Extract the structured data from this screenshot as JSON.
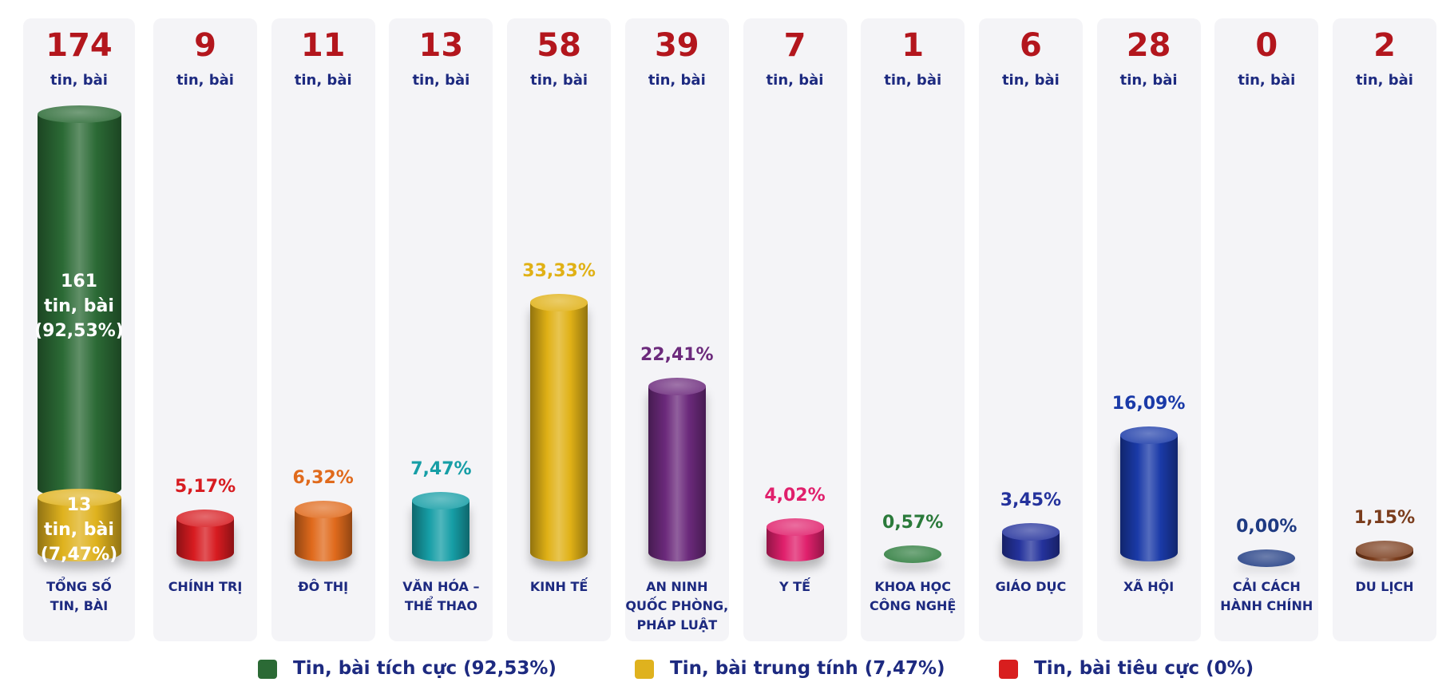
{
  "chart_data": {
    "type": "cylinder-bar",
    "unit": "tin, bài",
    "total": {
      "label_lines": [
        "TỔNG SỐ",
        "TIN, BÀI"
      ],
      "count": 174
    },
    "series": [
      {
        "name": "Tin, bài tích cực (92,53%)",
        "color": "#2b6a35",
        "count": 161,
        "percent": 92.53,
        "percent_label": "(92,53%)"
      },
      {
        "name": "Tin, bài trung tính (7,47%)",
        "color": "#dfb21e",
        "count": 13,
        "percent": 7.47,
        "percent_label": "(7,47%)"
      },
      {
        "name": "Tin, bài tiêu cực (0%)",
        "color": "#d81e1e"
      }
    ],
    "categories": [
      {
        "label_lines": [
          "CHÍNH TRỊ"
        ],
        "count": 9,
        "percent": 5.17,
        "percent_label": "5,17%",
        "color": "#d71b20"
      },
      {
        "label_lines": [
          "ĐÔ THỊ"
        ],
        "count": 11,
        "percent": 6.32,
        "percent_label": "6,32%",
        "color": "#e06a1c"
      },
      {
        "label_lines": [
          "VĂN HÓA –",
          "THỂ THAO"
        ],
        "count": 13,
        "percent": 7.47,
        "percent_label": "7,47%",
        "color": "#169ea6"
      },
      {
        "label_lines": [
          "KINH TẾ"
        ],
        "count": 58,
        "percent": 33.33,
        "percent_label": "33,33%",
        "color": "#e0b116"
      },
      {
        "label_lines": [
          "AN NINH",
          "QUỐC PHÒNG,",
          "PHÁP LUẬT"
        ],
        "count": 39,
        "percent": 22.41,
        "percent_label": "22,41%",
        "color": "#6c2a7c"
      },
      {
        "label_lines": [
          "Y TẾ"
        ],
        "count": 7,
        "percent": 4.02,
        "percent_label": "4,02%",
        "color": "#e0206c"
      },
      {
        "label_lines": [
          "KHOA HỌC",
          "CÔNG NGHỆ"
        ],
        "count": 1,
        "percent": 0.57,
        "percent_label": "0,57%",
        "color": "#2a7a3a"
      },
      {
        "label_lines": [
          "GIÁO DỤC"
        ],
        "count": 6,
        "percent": 3.45,
        "percent_label": "3,45%",
        "color": "#24329c"
      },
      {
        "label_lines": [
          "XÃ HỘI"
        ],
        "count": 28,
        "percent": 16.09,
        "percent_label": "16,09%",
        "color": "#1a3aa8"
      },
      {
        "label_lines": [
          "CẢI CÁCH",
          "HÀNH CHÍNH"
        ],
        "count": 0,
        "percent": 0.0,
        "percent_label": "0,00%",
        "color": "#1e3a82"
      },
      {
        "label_lines": [
          "DU LỊCH"
        ],
        "count": 2,
        "percent": 1.15,
        "percent_label": "1,15%",
        "color": "#7a3c1c"
      }
    ]
  }
}
